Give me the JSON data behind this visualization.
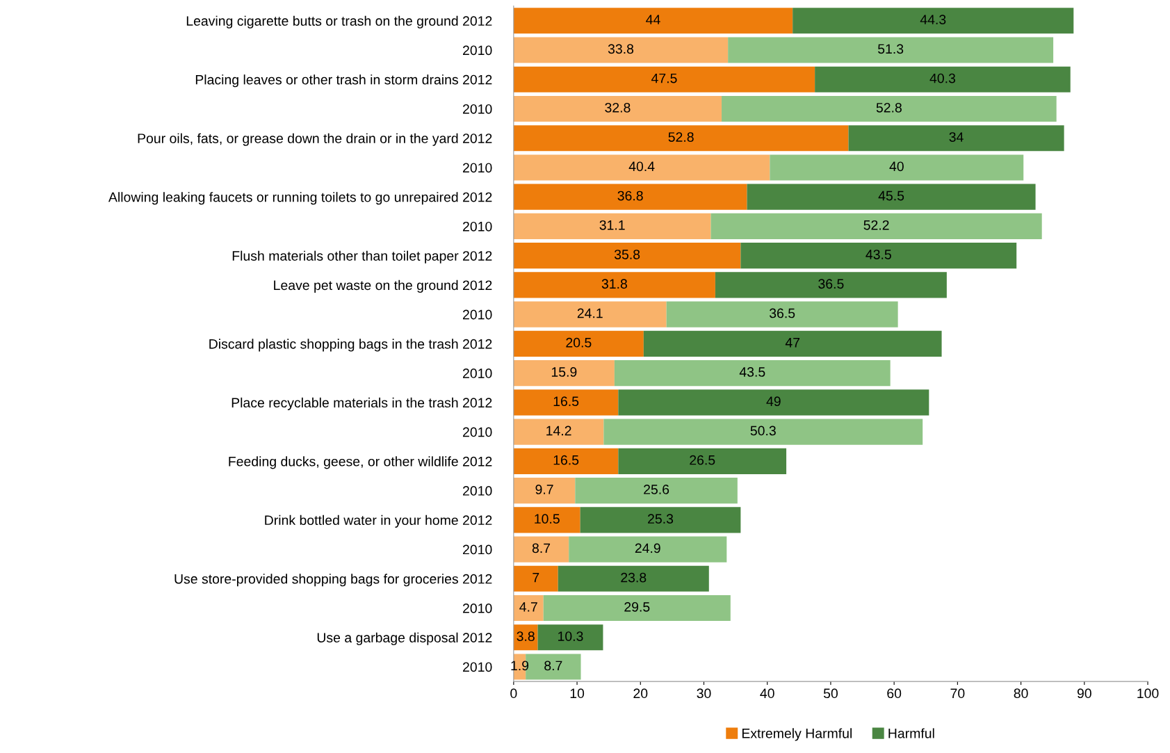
{
  "chart_data": {
    "type": "bar",
    "orientation": "horizontal",
    "stacked": true,
    "data_labels": true,
    "legend": "bottom",
    "grid": false,
    "categories": [
      "Leaving cigarette butts or trash on the ground 2012",
      "2010",
      "Placing leaves or other trash in storm drains 2012",
      "2010",
      "Pour oils, fats, or grease down the drain or in the yard 2012",
      "2010",
      "Allowing leaking faucets or running toilets to go unrepaired 2012",
      "2010",
      "Flush materials other than toilet paper 2012",
      "Leave pet waste on the ground 2012",
      "2010",
      "Discard plastic shopping bags in the trash 2012",
      "2010",
      "Place recyclable materials in the trash 2012",
      "2010",
      "Feeding ducks, geese, or other wildlife 2012",
      "2010",
      "Drink bottled water in your home 2012",
      "2010",
      "Use store-provided shopping bags for groceries 2012",
      "2010",
      "Use a garbage disposal 2012",
      "2010"
    ],
    "xlim": [
      0,
      100
    ],
    "xticks": [
      0,
      10,
      20,
      30,
      40,
      50,
      60,
      70,
      80,
      90,
      100
    ],
    "series": [
      {
        "name": "Extremely Harmful",
        "color": "#ee7d0c",
        "colors": [
          "#ee7d0c",
          "#f9b26a",
          "#ee7d0c",
          "#f9b26a",
          "#ee7d0c",
          "#f9b26a",
          "#ee7d0c",
          "#f9b26a",
          "#ee7d0c",
          "#ee7d0c",
          "#f9b26a",
          "#ee7d0c",
          "#f9b26a",
          "#ee7d0c",
          "#f9b26a",
          "#ee7d0c",
          "#f9b26a",
          "#ee7d0c",
          "#f9b26a",
          "#ee7d0c",
          "#f9b26a",
          "#ee7d0c",
          "#f9b26a"
        ],
        "values": [
          44,
          33.8,
          47.5,
          32.8,
          52.8,
          40.4,
          36.8,
          31.1,
          35.8,
          31.8,
          24.1,
          20.5,
          15.9,
          16.5,
          14.2,
          16.5,
          9.7,
          10.5,
          8.7,
          7,
          4.7,
          3.8,
          1.9
        ]
      },
      {
        "name": "Harmful",
        "color": "#4a8642",
        "colors": [
          "#4a8642",
          "#8fc485",
          "#4a8642",
          "#8fc485",
          "#4a8642",
          "#8fc485",
          "#4a8642",
          "#8fc485",
          "#4a8642",
          "#4a8642",
          "#8fc485",
          "#4a8642",
          "#8fc485",
          "#4a8642",
          "#8fc485",
          "#4a8642",
          "#8fc485",
          "#4a8642",
          "#8fc485",
          "#4a8642",
          "#8fc485",
          "#4a8642",
          "#8fc485"
        ],
        "values": [
          44.3,
          51.3,
          40.3,
          52.8,
          34,
          40,
          45.5,
          52.2,
          43.5,
          36.5,
          36.5,
          47,
          43.5,
          49,
          50.3,
          26.5,
          25.6,
          25.3,
          24.9,
          23.8,
          29.5,
          10.3,
          8.7
        ]
      }
    ]
  }
}
